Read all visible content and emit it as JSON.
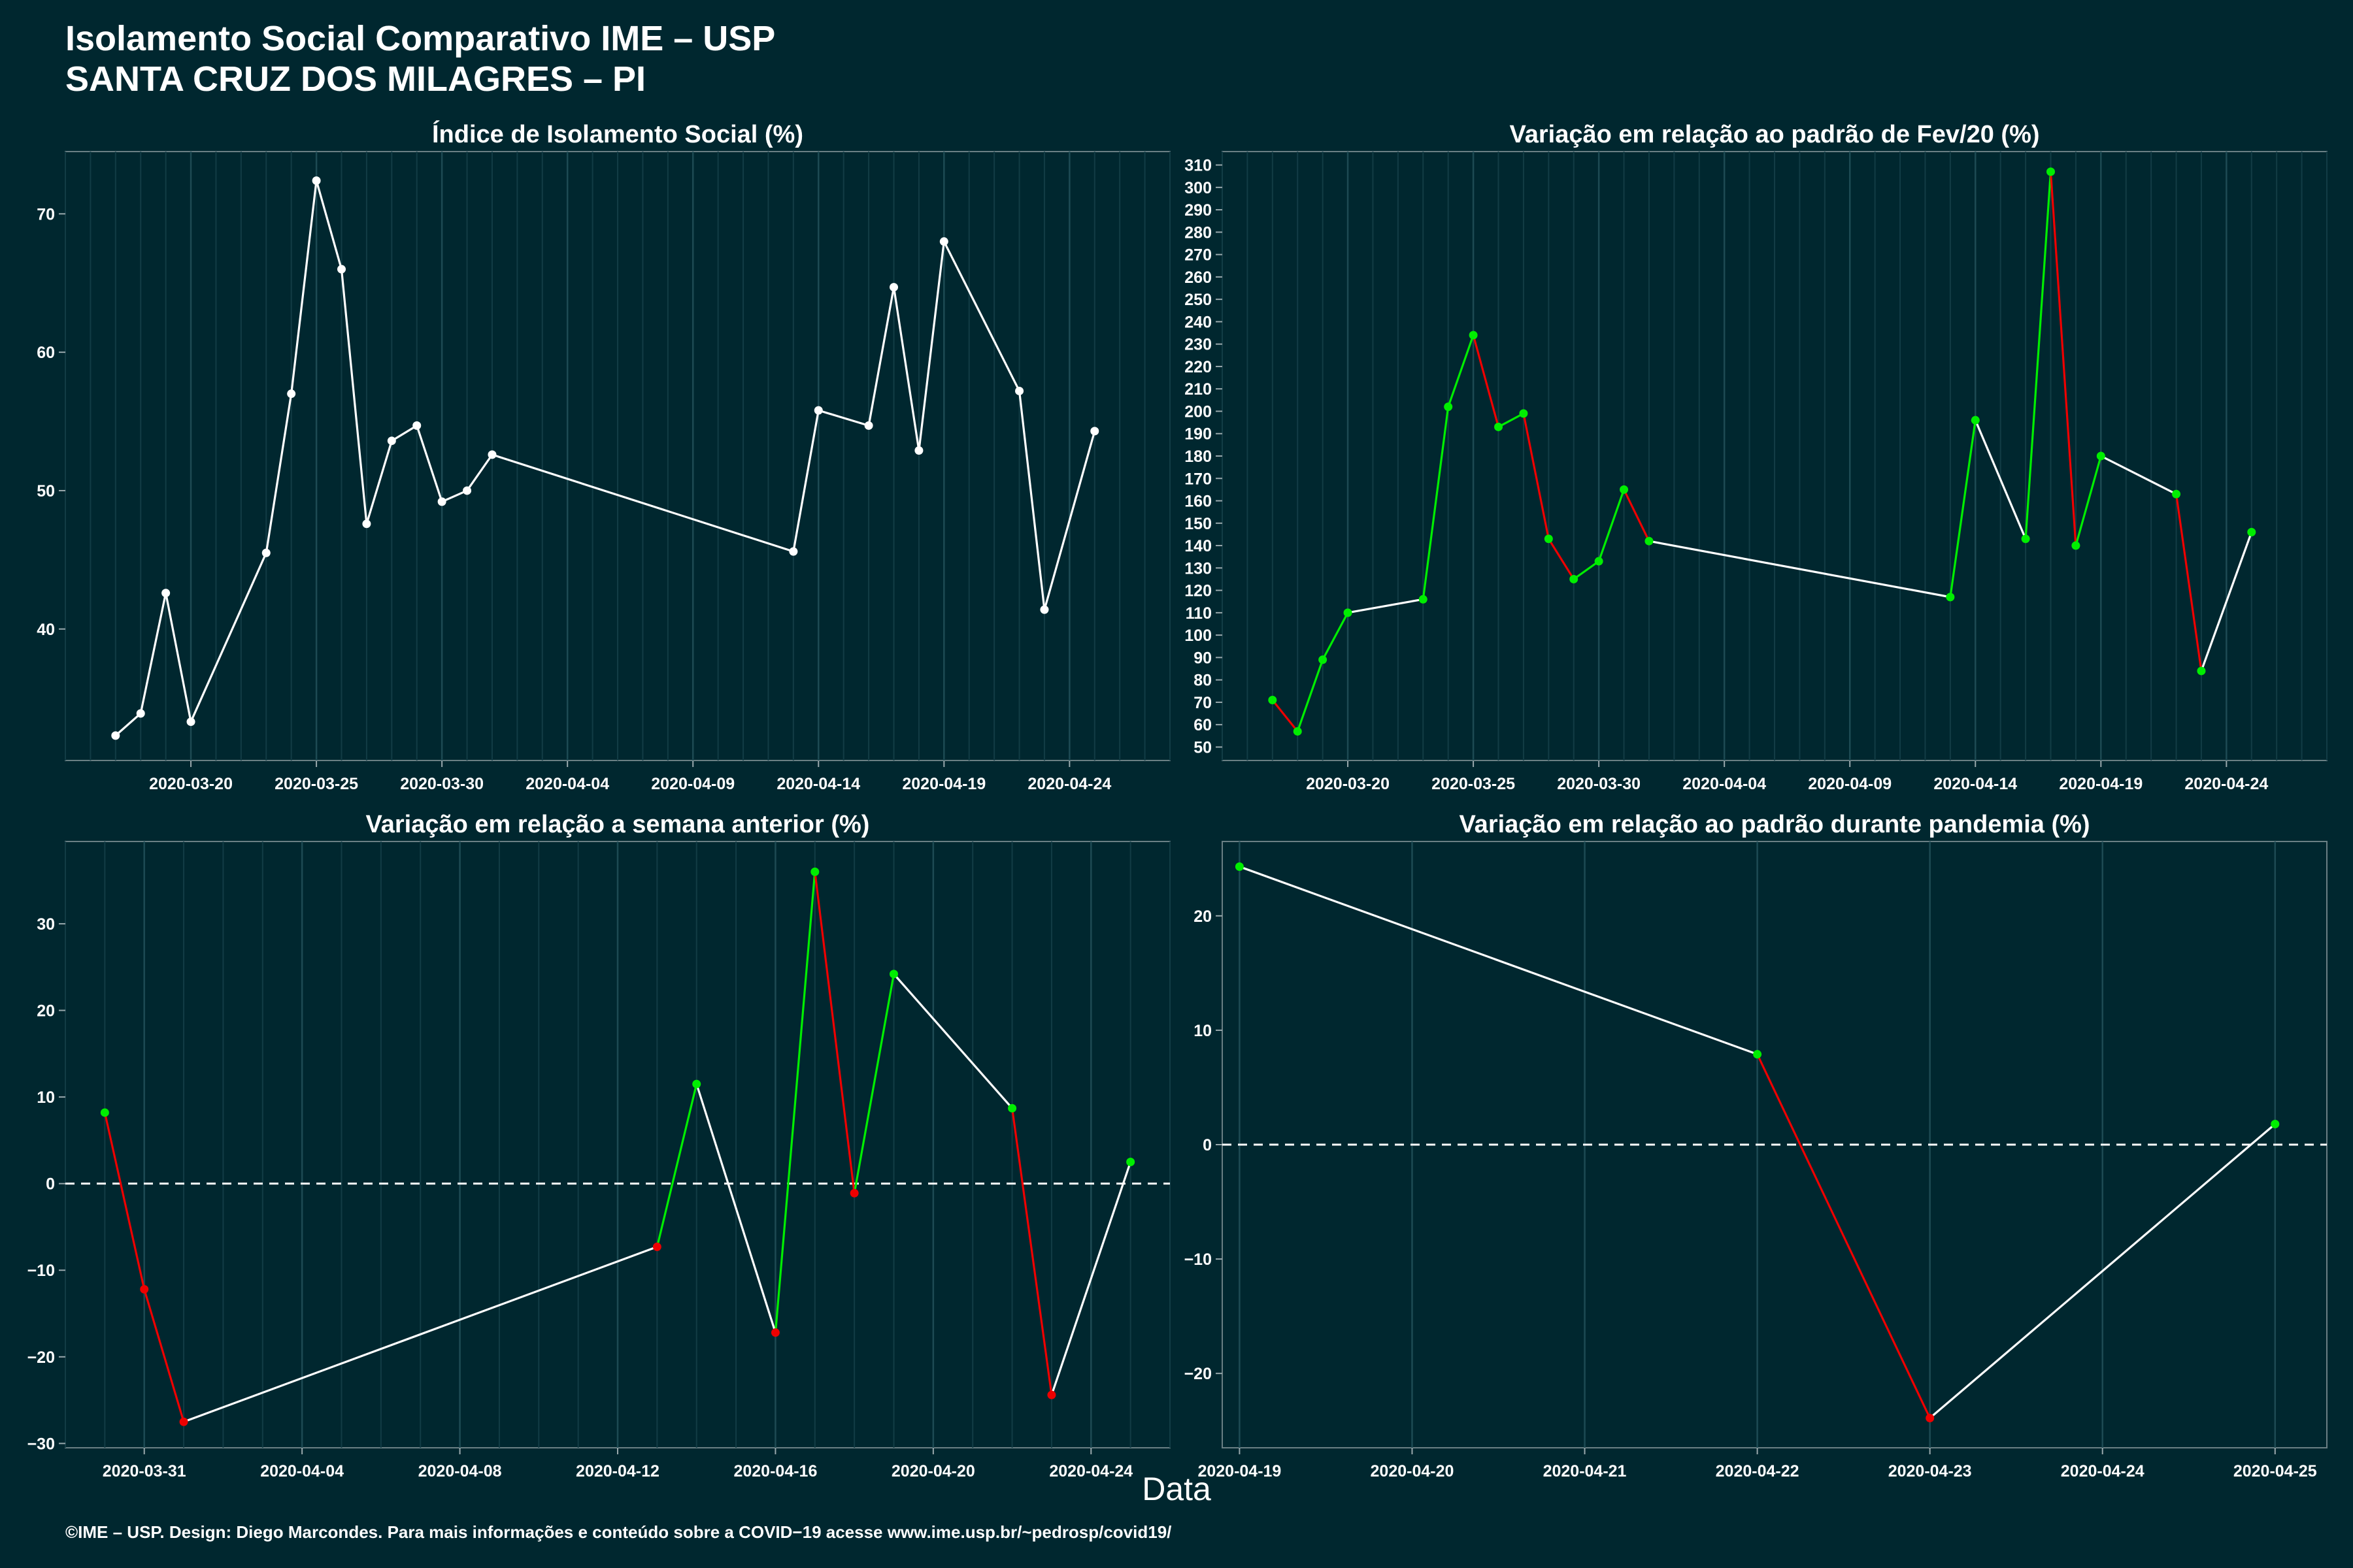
{
  "page": {
    "title_line1": "Isolamento Social Comparativo IME – USP",
    "title_line2": "SANTA CRUZ DOS MILAGRES – PI",
    "xlabel": "Data",
    "footer": "©IME – USP. Design: Diego Marcondes. Para mais informações e conteúdo sobre a COVID−19 acesse www.ime.usp.br/~pedrosp/covid19/"
  },
  "colors": {
    "background": "#00272f",
    "neutral": "#ffffff",
    "up": "#00ee00",
    "down": "#ee0000"
  },
  "chart_data": [
    {
      "type": "line",
      "title": "Índice de Isolamento Social (%)",
      "x": [
        "2020-03-17",
        "2020-03-18",
        "2020-03-19",
        "2020-03-20",
        "2020-03-23",
        "2020-03-24",
        "2020-03-25",
        "2020-03-26",
        "2020-03-27",
        "2020-03-28",
        "2020-03-29",
        "2020-03-30",
        "2020-03-31",
        "2020-04-01",
        "2020-04-13",
        "2020-04-14",
        "2020-04-16",
        "2020-04-17",
        "2020-04-18",
        "2020-04-19",
        "2020-04-22",
        "2020-04-23",
        "2020-04-25"
      ],
      "values": [
        32.3,
        33.9,
        42.6,
        33.3,
        45.5,
        57.0,
        72.4,
        66.0,
        47.6,
        53.6,
        54.7,
        49.2,
        50.0,
        52.6,
        45.6,
        55.8,
        54.7,
        64.7,
        52.9,
        68.0,
        57.2,
        41.4,
        54.3
      ],
      "colors": "white",
      "xlim": [
        "2020-03-15",
        "2020-04-28"
      ],
      "ylim": [
        30.5,
        74.5
      ],
      "xticks": [
        "2020-03-20",
        "2020-03-25",
        "2020-03-30",
        "2020-04-04",
        "2020-04-09",
        "2020-04-14",
        "2020-04-19",
        "2020-04-24"
      ],
      "yticks": [
        40,
        50,
        60,
        70
      ],
      "zero_line": false,
      "grid": "vertical"
    },
    {
      "type": "line",
      "title": "Variação em relação ao padrão de Fev/20 (%)",
      "x": [
        "2020-03-17",
        "2020-03-18",
        "2020-03-19",
        "2020-03-20",
        "2020-03-23",
        "2020-03-24",
        "2020-03-25",
        "2020-03-26",
        "2020-03-27",
        "2020-03-28",
        "2020-03-29",
        "2020-03-30",
        "2020-03-31",
        "2020-04-01",
        "2020-04-13",
        "2020-04-14",
        "2020-04-16",
        "2020-04-17",
        "2020-04-18",
        "2020-04-19",
        "2020-04-22",
        "2020-04-23",
        "2020-04-25"
      ],
      "values": [
        71,
        57,
        89,
        110,
        116,
        202,
        234,
        193,
        199,
        143,
        125,
        133,
        165,
        142,
        117,
        196,
        143,
        307,
        140,
        180,
        163,
        84,
        146
      ],
      "colors": "trend",
      "xlim": [
        "2020-03-15",
        "2020-04-28"
      ],
      "ylim": [
        44,
        316
      ],
      "xticks": [
        "2020-03-20",
        "2020-03-25",
        "2020-03-30",
        "2020-04-04",
        "2020-04-09",
        "2020-04-14",
        "2020-04-19",
        "2020-04-24"
      ],
      "yticks": [
        50,
        60,
        70,
        80,
        90,
        100,
        110,
        120,
        130,
        140,
        150,
        160,
        170,
        180,
        190,
        200,
        210,
        220,
        230,
        240,
        250,
        260,
        270,
        280,
        290,
        300,
        310
      ],
      "zero_line": false,
      "grid": "vertical"
    },
    {
      "type": "line",
      "title": "Variação em relação a semana anterior (%)",
      "x": [
        "2020-03-30",
        "2020-03-31",
        "2020-04-01",
        "2020-04-13",
        "2020-04-14",
        "2020-04-16",
        "2020-04-17",
        "2020-04-18",
        "2020-04-19",
        "2020-04-22",
        "2020-04-23",
        "2020-04-25"
      ],
      "values": [
        8.2,
        -12.2,
        -27.5,
        -7.3,
        11.5,
        -17.2,
        36.0,
        -1.1,
        24.2,
        8.7,
        -24.4,
        2.5
      ],
      "colors": "sign",
      "xlim": [
        "2020-03-29",
        "2020-04-26"
      ],
      "ylim": [
        -30.5,
        39.5
      ],
      "xticks": [
        "2020-03-31",
        "2020-04-04",
        "2020-04-08",
        "2020-04-12",
        "2020-04-16",
        "2020-04-20",
        "2020-04-24"
      ],
      "yticks": [
        -30,
        -20,
        -10,
        0,
        10,
        20,
        30
      ],
      "zero_line": true,
      "grid": "vertical"
    },
    {
      "type": "line",
      "title": "Variação em relação ao padrão durante pandemia (%)",
      "x": [
        "2020-04-19",
        "2020-04-22",
        "2020-04-23",
        "2020-04-25"
      ],
      "values": [
        24.3,
        7.9,
        -23.9,
        1.8
      ],
      "colors": "sign",
      "xlim": [
        "2020-04-18.9",
        "2020-04-25.3"
      ],
      "ylim": [
        -26.5,
        26.5
      ],
      "xticks": [
        "2020-04-19",
        "2020-04-20",
        "2020-04-21",
        "2020-04-22",
        "2020-04-23",
        "2020-04-24",
        "2020-04-25"
      ],
      "yticks": [
        -20,
        -10,
        0,
        10,
        20
      ],
      "zero_line": true,
      "grid": "vertical"
    }
  ]
}
